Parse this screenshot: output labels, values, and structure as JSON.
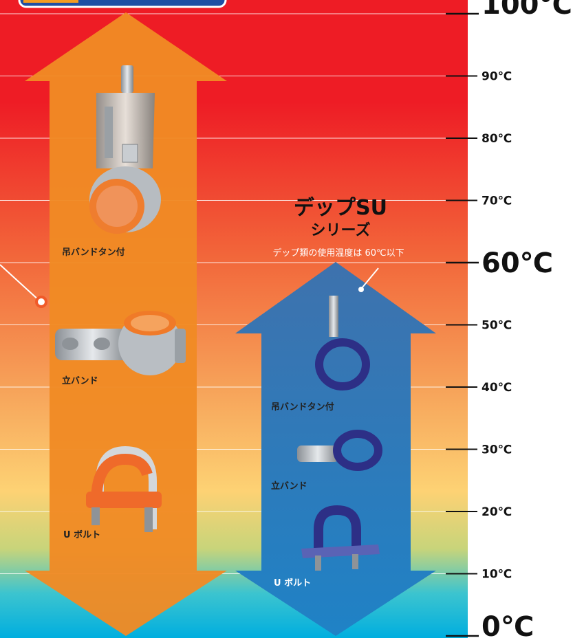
{
  "chart_data": {
    "type": "diagram",
    "axis": {
      "unit": "℃",
      "range": [
        0,
        100
      ],
      "major_ticks": [
        0,
        60,
        100
      ],
      "ticks": [
        {
          "value": 100,
          "label": "100℃"
        },
        {
          "value": 90,
          "label": "90℃"
        },
        {
          "value": 80,
          "label": "80℃"
        },
        {
          "value": 70,
          "label": "70℃"
        },
        {
          "value": 60,
          "label": "60℃"
        },
        {
          "value": 50,
          "label": "50℃"
        },
        {
          "value": 40,
          "label": "40℃"
        },
        {
          "value": 30,
          "label": "30℃"
        },
        {
          "value": 20,
          "label": "20℃"
        },
        {
          "value": 10,
          "label": "10℃"
        },
        {
          "value": 0,
          "label": "0℃"
        }
      ]
    },
    "ranges": [
      {
        "id": "standard",
        "color": "#f08a24",
        "min": 0,
        "max": 100,
        "products": [
          "吊バンドタン付",
          "立バンド",
          "U ボルト"
        ]
      },
      {
        "id": "dip-su",
        "color": "#3a74b0",
        "title": "デップSU",
        "subtitle": "シリーズ",
        "note": "デップ類の使用温度は 60℃以下",
        "min": 0,
        "max": 60,
        "products": [
          "吊バンドタン付",
          "立バンド",
          "U ボルト"
        ]
      }
    ]
  },
  "colors": {
    "hot": "#ee1c25",
    "mid": "#f6a353",
    "cool": "#fdd274",
    "cold": "#00aedf"
  }
}
